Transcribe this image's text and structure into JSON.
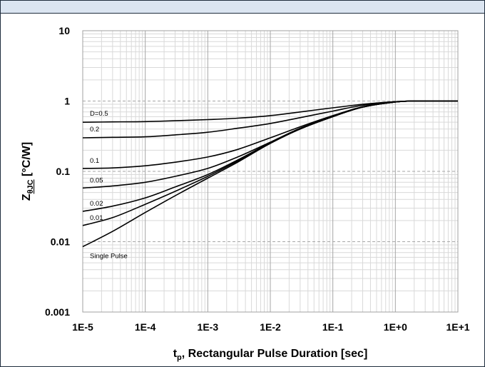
{
  "chart_data": {
    "type": "line",
    "xlabel_main": "t",
    "xlabel_sub": "p",
    "xlabel_rest": ", Rectangular Pulse Duration [sec]",
    "ylabel_main": "Z",
    "ylabel_sub": "θJC",
    "ylabel_rest": " [°C/W]",
    "x_scale": "log",
    "y_scale": "log",
    "xlim": [
      1e-05,
      10
    ],
    "ylim": [
      0.001,
      10
    ],
    "x_ticks": [
      1e-05,
      0.0001,
      0.001,
      0.01,
      0.1,
      1,
      10
    ],
    "x_tick_labels": [
      "1E-5",
      "1E-4",
      "1E-3",
      "1E-2",
      "1E-1",
      "1E+0",
      "1E+1"
    ],
    "y_ticks": [
      0.001,
      0.01,
      0.1,
      1,
      10
    ],
    "y_tick_labels": [
      "0.001",
      "0.01",
      "0.1",
      "1",
      "10"
    ],
    "grid": true,
    "x": [
      1e-05,
      3e-05,
      0.0001,
      0.0003,
      0.001,
      0.003,
      0.01,
      0.03,
      0.1,
      0.3,
      1,
      2,
      10
    ],
    "series": [
      {
        "name": "D=0.5",
        "values": [
          0.5,
          0.505,
          0.51,
          0.525,
          0.545,
          0.57,
          0.62,
          0.7,
          0.8,
          0.9,
          0.98,
          1.0,
          1.0
        ]
      },
      {
        "name": "0.2",
        "values": [
          0.3,
          0.305,
          0.31,
          0.33,
          0.36,
          0.41,
          0.48,
          0.58,
          0.72,
          0.87,
          0.97,
          1.0,
          1.0
        ]
      },
      {
        "name": "0.1",
        "values": [
          0.11,
          0.112,
          0.12,
          0.135,
          0.16,
          0.205,
          0.3,
          0.43,
          0.62,
          0.83,
          0.97,
          1.0,
          1.0
        ]
      },
      {
        "name": "0.05",
        "values": [
          0.058,
          0.062,
          0.07,
          0.085,
          0.11,
          0.16,
          0.26,
          0.41,
          0.61,
          0.82,
          0.97,
          1.0,
          1.0
        ]
      },
      {
        "name": "0.02",
        "values": [
          0.027,
          0.032,
          0.042,
          0.06,
          0.09,
          0.145,
          0.255,
          0.4,
          0.6,
          0.82,
          0.97,
          1.0,
          1.0
        ]
      },
      {
        "name": "0.01",
        "values": [
          0.017,
          0.022,
          0.034,
          0.052,
          0.085,
          0.14,
          0.25,
          0.4,
          0.6,
          0.82,
          0.97,
          1.0,
          1.0
        ]
      },
      {
        "name": "Single Pulse",
        "values": [
          0.0085,
          0.014,
          0.026,
          0.045,
          0.08,
          0.135,
          0.25,
          0.4,
          0.6,
          0.82,
          0.97,
          1.0,
          1.0
        ]
      }
    ]
  }
}
